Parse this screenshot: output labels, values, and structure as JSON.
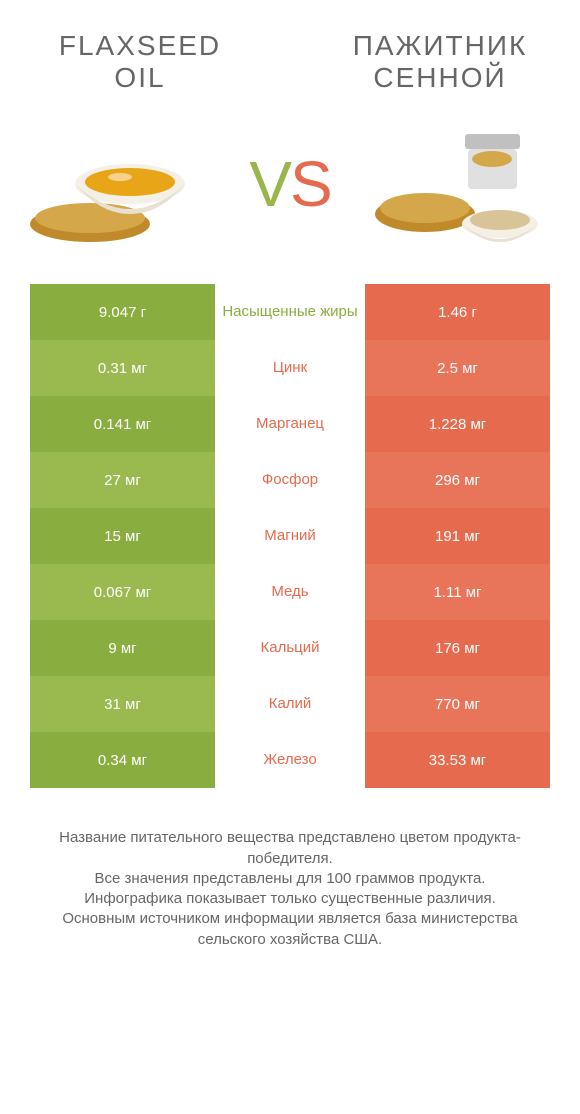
{
  "left_title": "Flaxseed oil",
  "right_title": "Пажитник сенной",
  "vs_letters": {
    "v": "V",
    "s": "S"
  },
  "colors": {
    "green_dark": "#8aad3f",
    "green_light": "#9ab94f",
    "orange": "#e66a4e",
    "orange_alt": "#e8745a",
    "text_green": "#8aad3f",
    "text_orange": "#e66a4e",
    "oil": "#e8a518",
    "seed": "#c08a2a",
    "seed_light": "#d4a84a",
    "powder": "#d9c49a",
    "bowl": "#f5f0e6",
    "bowl_shadow": "#e8e0d0",
    "jar_lid": "#c0c0c0",
    "jar_body": "#e0e0e0"
  },
  "rows": [
    {
      "left": "9.047 г",
      "label": "Насыщенные жиры",
      "right": "1.46 г",
      "winner": "left"
    },
    {
      "left": "0.31 мг",
      "label": "Цинк",
      "right": "2.5 мг",
      "winner": "right"
    },
    {
      "left": "0.141 мг",
      "label": "Марганец",
      "right": "1.228 мг",
      "winner": "right"
    },
    {
      "left": "27 мг",
      "label": "Фосфор",
      "right": "296 мг",
      "winner": "right"
    },
    {
      "left": "15 мг",
      "label": "Магний",
      "right": "191 мг",
      "winner": "right"
    },
    {
      "left": "0.067 мг",
      "label": "Медь",
      "right": "1.11 мг",
      "winner": "right"
    },
    {
      "left": "9 мг",
      "label": "Кальций",
      "right": "176 мг",
      "winner": "right"
    },
    {
      "left": "31 мг",
      "label": "Калий",
      "right": "770 мг",
      "winner": "right"
    },
    {
      "left": "0.34 мг",
      "label": "Железо",
      "right": "33.53 мг",
      "winner": "right"
    }
  ],
  "footer_lines": [
    "Название питательного вещества представлено цветом продукта-победителя.",
    "Все значения представлены для 100 граммов продукта.",
    "Инфографика показывает только существенные различия.",
    "Основным источником информации является база министерства сельского хозяйства США."
  ]
}
